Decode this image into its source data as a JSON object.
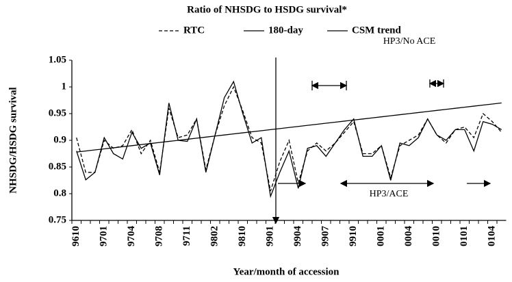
{
  "chart_data": {
    "type": "line",
    "title": "Ratio of NHSDG to HSDG survival*",
    "xlabel": "Year/month of accession",
    "ylabel": "NHSDG/HSDG survival",
    "categories": [
      "9610",
      null,
      null,
      "9701",
      null,
      null,
      "9704",
      null,
      null,
      "9708",
      null,
      null,
      "9711",
      null,
      null,
      "9802",
      null,
      null,
      "9810",
      null,
      null,
      "9901",
      null,
      null,
      "9904",
      null,
      null,
      "9907",
      null,
      null,
      "9910",
      null,
      null,
      "0001",
      null,
      null,
      "0004",
      null,
      null,
      "0010",
      null,
      null,
      "0101",
      null,
      null,
      "0104",
      null
    ],
    "series": [
      {
        "name": "RTC",
        "color": "#000000",
        "dash": true,
        "values": [
          0.905,
          0.84,
          0.84,
          0.9,
          0.885,
          0.89,
          0.92,
          0.875,
          0.9,
          0.84,
          0.96,
          0.905,
          0.91,
          0.94,
          0.845,
          0.91,
          0.965,
          1.0,
          0.955,
          0.905,
          0.895,
          0.805,
          0.86,
          0.9,
          0.82,
          0.88,
          0.895,
          0.88,
          0.895,
          0.915,
          0.935,
          0.875,
          0.875,
          0.89,
          0.83,
          0.89,
          0.9,
          0.91,
          0.94,
          0.91,
          0.895,
          0.92,
          0.925,
          0.905,
          0.95,
          0.935,
          0.915
        ]
      },
      {
        "name": "180-day",
        "color": "#000000",
        "dash": false,
        "values": [
          0.88,
          0.826,
          0.84,
          0.905,
          0.875,
          0.865,
          0.915,
          0.885,
          0.895,
          0.835,
          0.97,
          0.9,
          0.898,
          0.94,
          0.84,
          0.91,
          0.98,
          1.01,
          0.95,
          0.895,
          0.905,
          0.795,
          0.84,
          0.88,
          0.81,
          0.885,
          0.89,
          0.87,
          0.895,
          0.92,
          0.94,
          0.87,
          0.87,
          0.89,
          0.825,
          0.895,
          0.89,
          0.905,
          0.94,
          0.91,
          0.9,
          0.92,
          0.92,
          0.88,
          0.935,
          0.93,
          0.92
        ]
      },
      {
        "name": "CSM trend",
        "color": "#000000",
        "dash": false,
        "values": [
          0.878,
          0.88,
          0.882,
          0.884,
          0.886,
          0.888,
          0.89,
          0.892,
          0.894,
          0.896,
          0.898,
          0.9,
          0.902,
          0.904,
          0.906,
          0.908,
          0.91,
          0.912,
          0.914,
          0.916,
          0.918,
          0.92,
          0.922,
          0.924,
          0.926,
          0.928,
          0.93,
          0.932,
          0.934,
          0.936,
          0.938,
          0.94,
          0.942,
          0.944,
          0.946,
          0.948,
          0.95,
          0.952,
          0.954,
          0.956,
          0.958,
          0.96,
          0.962,
          0.964,
          0.966,
          0.968,
          0.97
        ]
      }
    ],
    "ylim": [
      0.75,
      1.05
    ],
    "yticks": [
      0.75,
      0.8,
      0.85,
      0.9,
      0.95,
      1,
      1.05
    ],
    "grid": false,
    "annotations": [
      "HP3/No ACE",
      "HP3/ACE"
    ]
  }
}
